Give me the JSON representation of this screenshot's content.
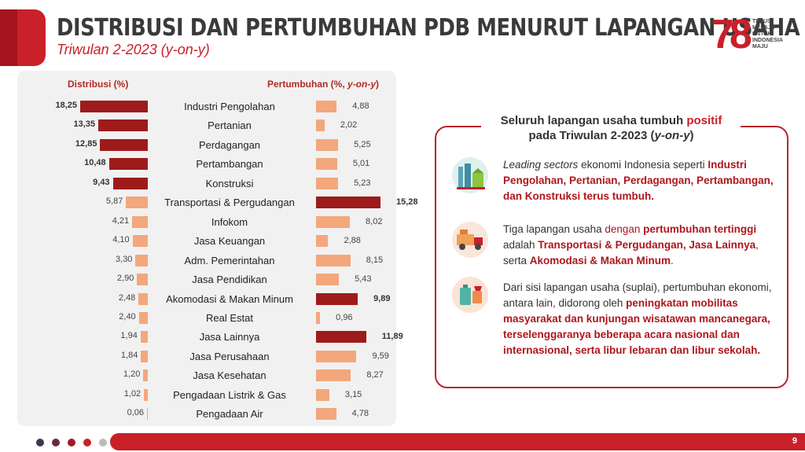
{
  "header": {
    "title": "DISTRIBUSI DAN PERTUMBUHAN PDB MENURUT LAPANGAN USAHA",
    "subtitle": "Triwulan 2-2023 (y-on-y)"
  },
  "logo": {
    "number": "78",
    "text": "TERUS\nMELAJU\nUNTUK\nINDONESIA\nMAJU"
  },
  "chart_data": {
    "type": "bar",
    "title": "",
    "left_header": "Distribusi (%)",
    "right_header_main": "Pertumbuhan (%, ",
    "right_header_italic": "y-on-y",
    "right_header_tail": ")",
    "categories": [
      "Industri Pengolahan",
      "Pertanian",
      "Perdagangan",
      "Pertambangan",
      "Konstruksi",
      "Transportasi & Pergudangan",
      "Infokom",
      "Jasa Keuangan",
      "Adm. Pemerintahan",
      "Jasa Pendidikan",
      "Akomodasi & Makan Minum",
      "Real Estat",
      "Jasa Lainnya",
      "Jasa Perusahaan",
      "Jasa Kesehatan",
      "Pengadaan Listrik & Gas",
      "Pengadaan Air"
    ],
    "series": [
      {
        "name": "Distribusi (%)",
        "values": [
          18.25,
          13.35,
          12.85,
          10.48,
          9.43,
          5.87,
          4.21,
          4.1,
          3.3,
          2.9,
          2.48,
          2.4,
          1.94,
          1.84,
          1.2,
          1.02,
          0.06
        ],
        "labels": [
          "18,25",
          "13,35",
          "12,85",
          "10,48",
          "9,43",
          "5,87",
          "4,21",
          "4,10",
          "3,30",
          "2,90",
          "2,48",
          "2,40",
          "1,94",
          "1,84",
          "1,20",
          "1,02",
          "0,06"
        ]
      },
      {
        "name": "Pertumbuhan (%, y-on-y)",
        "values": [
          4.88,
          2.02,
          5.25,
          5.01,
          5.23,
          15.28,
          8.02,
          2.88,
          8.15,
          5.43,
          9.89,
          0.96,
          11.89,
          9.59,
          8.27,
          3.15,
          4.78
        ],
        "labels": [
          "4,88",
          "2,02",
          "5,25",
          "5,01",
          "5,23",
          "15,28",
          "8,02",
          "2,88",
          "8,15",
          "5,43",
          "9,89",
          "0,96",
          "11,89",
          "9,59",
          "8,27",
          "3,15",
          "4,78"
        ]
      }
    ],
    "colors": {
      "dark": "#9e1b1b",
      "light": "#f3a77d"
    }
  },
  "info": {
    "title_part1": "Seluruh lapangan usaha tumbuh ",
    "title_red": "positif",
    "title_part2": "pada Triwulan 2-2023 (",
    "title_italic": "y-on-y",
    "title_tail": ")",
    "items": [
      {
        "icon": "factory-icon",
        "p1_italic": "Leading sectors",
        "p1_normal": " ekonomi Indonesia seperti ",
        "p1_highlight": "Industri Pengolahan, Pertanian, Perdagangan, Pertambangan, dan Konstruksi terus tumbuh."
      },
      {
        "icon": "truck-icon",
        "p1": "Tiga lapangan usaha ",
        "p2_red": "dengan ",
        "p3_hl": "pertumbuhan tertinggi",
        "p4": " adalah ",
        "p5_hl": "Transportasi & Pergudangan, Jasa Lainnya",
        "p6": ", serta ",
        "p7_hl": "Akomodasi & Makan Minum",
        "p8": "."
      },
      {
        "icon": "travel-icon",
        "p1": "Dari sisi lapangan usaha (suplai), pertumbuhan ekonomi, antara lain, didorong oleh ",
        "p2_hl": "peningkatan mobilitas masyarakat dan kunjungan wisatawan mancanegara, terselenggaranya beberapa acara nasional dan internasional, serta libur lebaran dan libur sekolah."
      }
    ]
  },
  "footer": {
    "page": "9",
    "dot_colors": [
      "#3a3a4a",
      "#6b2a3a",
      "#9e1b2a",
      "#c9202a",
      "#bbbbbb"
    ]
  }
}
